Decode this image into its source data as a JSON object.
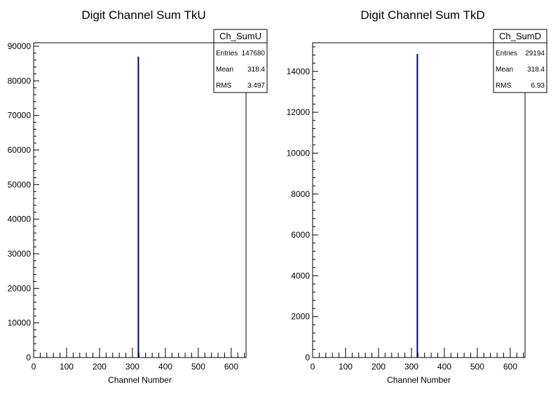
{
  "chart_data": [
    {
      "type": "bar",
      "title": "Digit Channel Sum TkU",
      "xlabel": "Channel Number",
      "ylabel": "",
      "xlim": [
        0,
        645
      ],
      "ylim": [
        0,
        91000
      ],
      "x_ticks": [
        0,
        100,
        200,
        300,
        400,
        500,
        600
      ],
      "y_ticks": [
        0,
        10000,
        20000,
        30000,
        40000,
        50000,
        60000,
        70000,
        80000,
        90000
      ],
      "series": [
        {
          "x": [
            318
          ],
          "values": [
            87000
          ],
          "color": "#000080"
        }
      ],
      "stats_box": {
        "name": "Ch_SumU",
        "rows": [
          {
            "label": "Entries",
            "value": "147680"
          },
          {
            "label": "Mean",
            "value": "318.4"
          },
          {
            "label": "RMS",
            "value": "3.497"
          }
        ]
      },
      "grid": false
    },
    {
      "type": "bar",
      "title": "Digit Channel Sum TkD",
      "xlabel": "Channel Number",
      "ylabel": "",
      "xlim": [
        0,
        645
      ],
      "ylim": [
        0,
        15400
      ],
      "x_ticks": [
        0,
        100,
        200,
        300,
        400,
        500,
        600
      ],
      "y_ticks": [
        0,
        2000,
        4000,
        6000,
        8000,
        10000,
        12000,
        14000
      ],
      "series": [
        {
          "x": [
            318
          ],
          "values": [
            14850
          ],
          "color": "#000080"
        }
      ],
      "stats_box": {
        "name": "Ch_SumD",
        "rows": [
          {
            "label": "Entries",
            "value": "29194"
          },
          {
            "label": "Mean",
            "value": "318.4"
          },
          {
            "label": "RMS",
            "value": "6.93"
          }
        ]
      },
      "grid": false
    }
  ]
}
